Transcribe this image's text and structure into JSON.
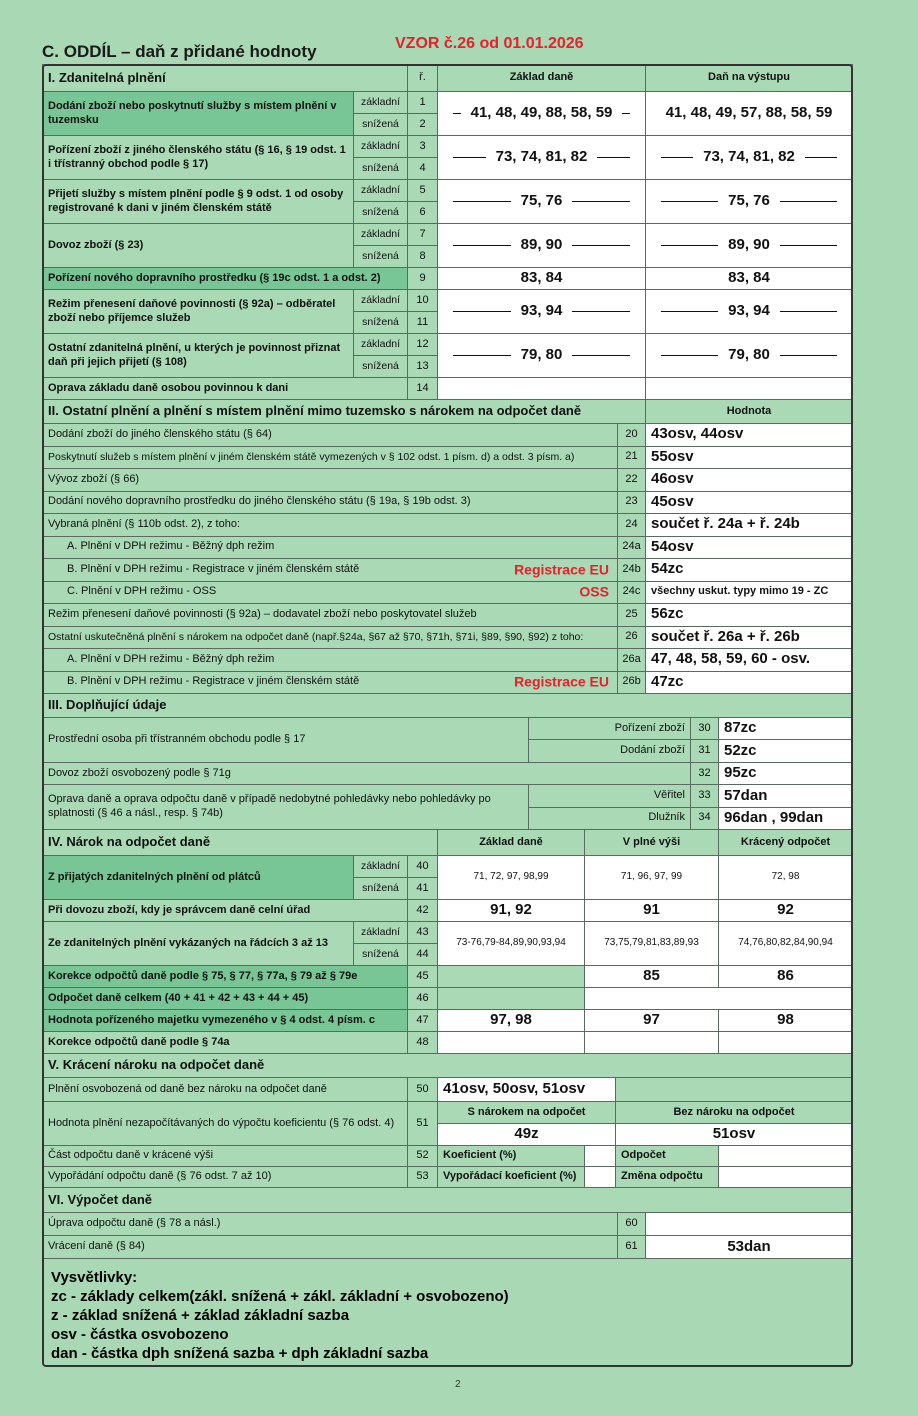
{
  "header": {
    "title": "C. ODDÍL – daň z přidané hodnoty",
    "stamp": "VZOR č.26 od 01.01.2026"
  },
  "section_1": {
    "heading": "I. Zdanitelná plnění",
    "col_r": "ř.",
    "col_base": "Základ daně",
    "col_tax": "Daň na výstupu",
    "rows": [
      {
        "label": "Dodání zboží nebo poskytnutí služby s místem plnění v tuzemsku",
        "subs": [
          "základní",
          "snížená"
        ],
        "nums": [
          "1",
          "2"
        ],
        "base": "41, 48, 49, 88, 58, 59",
        "tax": "41, 48, 49, 57, 88, 58, 59"
      },
      {
        "label": "Pořízení zboží z jiného členského státu (§ 16, § 19 odst. 1 i třístranný obchod podle § 17)",
        "subs": [
          "základní",
          "snížená"
        ],
        "nums": [
          "3",
          "4"
        ],
        "base": "73, 74, 81, 82",
        "tax": "73, 74, 81, 82"
      },
      {
        "label": "Přijetí služby s místem plnění podle § 9 odst. 1 od osoby registrované k dani v jiném členském státě",
        "subs": [
          "základní",
          "snížená"
        ],
        "nums": [
          "5",
          "6"
        ],
        "base": "75, 76",
        "tax": "75, 76"
      },
      {
        "label": "Dovoz zboží (§ 23)",
        "subs": [
          "základní",
          "snížená"
        ],
        "nums": [
          "7",
          "8"
        ],
        "base": "89, 90",
        "tax": "89, 90"
      },
      {
        "label": "Pořízení nového dopravního prostředku (§ 19c odst. 1 a odst. 2)",
        "nums": [
          "9"
        ],
        "base": "83, 84",
        "tax": "83, 84"
      },
      {
        "label": "Režim přenesení daňové povinnosti (§ 92a) – odběratel zboží nebo příjemce služeb",
        "subs": [
          "základní",
          "snížená"
        ],
        "nums": [
          "10",
          "11"
        ],
        "base": "93, 94",
        "tax": "93, 94"
      },
      {
        "label": "Ostatní zdanitelná plnění, u kterých je povinnost přiznat daň při jejich přijetí (§ 108)",
        "subs": [
          "základní",
          "snížená"
        ],
        "nums": [
          "12",
          "13"
        ],
        "base": "79, 80",
        "tax": "79, 80"
      },
      {
        "label": "Oprava základu daně osobou povinnou k dani",
        "nums": [
          "14"
        ]
      }
    ]
  },
  "section_2": {
    "heading": "II. Ostatní plnění a plnění s místem plnění mimo tuzemsko s nárokem na odpočet daně",
    "col_value": "Hodnota",
    "rows": [
      {
        "label": "Dodání zboží do jiného členského státu (§ 64)",
        "num": "20",
        "value": "43osv, 44osv"
      },
      {
        "label": "Poskytnutí služeb s místem plnění v jiném členském státě vymezených v § 102 odst. 1 písm. d) a odst. 3 písm. a)",
        "num": "21",
        "value": "55osv"
      },
      {
        "label": "Vývoz zboží (§ 66)",
        "num": "22",
        "value": "46osv"
      },
      {
        "label": "Dodání nového dopravního prostředku do jiného členského státu (§ 19a, § 19b odst. 3)",
        "num": "23",
        "value": "45osv"
      },
      {
        "label": "Vybraná plnění (§ 110b odst. 2), z toho:",
        "num": "24",
        "value": "součet ř. 24a + ř. 24b"
      },
      {
        "label": "A. Plnění v DPH režimu - Běžný dph režim",
        "num": "24a",
        "value": "54osv"
      },
      {
        "label": "B. Plnění v DPH režimu - Registrace v jiném členském státě",
        "note": "Registrace EU",
        "num": "24b",
        "value": "54zc"
      },
      {
        "label": "C. Plnění v DPH režimu - OSS",
        "note": "OSS",
        "num": "24c",
        "value": "všechny uskut. typy mimo 19 - ZC"
      },
      {
        "label": "Režim přenesení daňové povinnosti (§ 92a) – dodavatel zboží nebo poskytovatel služeb",
        "num": "25",
        "value": "56zc"
      },
      {
        "label": "Ostatní uskutečněná plnění s nárokem na odpočet daně (např.§24a, §67 až §70, §71h, §71i, §89, §90, §92) z toho:",
        "num": "26",
        "value": "součet ř. 26a + ř. 26b"
      },
      {
        "label": "A. Plnění v DPH režimu - Běžný dph režim",
        "num": "26a",
        "value": "47, 48, 58, 59, 60 - osv."
      },
      {
        "label": "B. Plnění v DPH režimu - Registrace v jiném členském státě",
        "note": "Registrace EU",
        "num": "26b",
        "value": "47zc"
      }
    ]
  },
  "section_3": {
    "heading": "III. Doplňující údaje",
    "groups": [
      {
        "label": "Prostřední osoba při třístranném obchodu podle § 17",
        "items": [
          {
            "sub": "Pořízení zboží",
            "num": "30",
            "value": "87zc"
          },
          {
            "sub": "Dodání zboží",
            "num": "31",
            "value": "52zc"
          }
        ]
      },
      {
        "label": "Dovoz zboží osvobozený podle § 71g",
        "items": [
          {
            "num": "32",
            "value": "95zc"
          }
        ]
      },
      {
        "label": "Oprava daně a oprava odpočtu daně v případě nedobytné pohledávky nebo pohledávky po splatnosti (§ 46 a násl., resp. § 74b)",
        "items": [
          {
            "sub": "Věřitel",
            "num": "33",
            "value": "57dan"
          },
          {
            "sub": "Dlužník",
            "num": "34",
            "value": "96dan , 99dan"
          }
        ]
      }
    ]
  },
  "section_4": {
    "heading": "IV. Nárok na odpočet daně",
    "columns": [
      "Základ daně",
      "V plné výši",
      "Krácený odpočet"
    ],
    "rows": [
      {
        "label": "Z přijatých zdanitelných plnění od plátců",
        "subs": [
          "základní",
          "snížená"
        ],
        "nums": [
          "40",
          "41"
        ],
        "base": "71, 72, 97, 98,99",
        "full": "71, 96, 97, 99",
        "reduced": "72, 98"
      },
      {
        "label": "Při dovozu zboží, kdy je správcem daně celní úřad",
        "nums": [
          "42"
        ],
        "base": "91, 92",
        "full": "91",
        "reduced": "92"
      },
      {
        "label": "Ze zdanitelných plnění vykázaných na řádcích 3 až 13",
        "subs": [
          "základní",
          "snížená"
        ],
        "nums": [
          "43",
          "44"
        ],
        "base": "73-76,79-84,89,90,93,94",
        "full": "73,75,79,81,83,89,93",
        "reduced": "74,76,80,82,84,90,94"
      },
      {
        "label": "Korekce odpočtů daně podle § 75, § 77, § 77a, § 79 až § 79e",
        "nums": [
          "45"
        ],
        "full": "85",
        "reduced": "86"
      },
      {
        "label": "Odpočet daně celkem (40 + 41 + 42 + 43 + 44 + 45)",
        "nums": [
          "46"
        ]
      },
      {
        "label": "Hodnota pořízeného majetku vymezeného v § 4 odst. 4 písm. c",
        "nums": [
          "47"
        ],
        "base": "97, 98",
        "full": "97",
        "reduced": "98"
      },
      {
        "label": "Korekce odpočtů daně podle § 74a",
        "nums": [
          "48"
        ]
      }
    ]
  },
  "section_5": {
    "heading": "V. Krácení nároku na odpočet daně",
    "row_50": {
      "label": "Plnění osvobozená od daně bez nároku na odpočet daně",
      "num": "50",
      "value": "41osv, 50osv, 51osv"
    },
    "row_51": {
      "label": "Hodnota plnění nezapočítávaných do výpočtu koeficientu (§ 76 odst. 4)",
      "num": "51",
      "columns": [
        "S nárokem na odpočet",
        "Bez nároku na odpočet"
      ],
      "values": [
        "49z",
        "51osv"
      ]
    },
    "row_52": {
      "label": "Část odpočtu daně v krácené výši",
      "num": "52",
      "sub_1": "Koeficient (%)",
      "sub_2": "Odpočet"
    },
    "row_53": {
      "label": "Vypořádání odpočtu daně (§ 76 odst. 7 až 10)",
      "num": "53",
      "sub_1": "Vypořádací koeficient (%)",
      "sub_2": "Změna odpočtu"
    }
  },
  "section_6": {
    "heading": "VI. Výpočet daně",
    "rows": [
      {
        "label": "Úprava odpočtu daně (§ 78 a násl.)",
        "num": "60"
      },
      {
        "label": "Vrácení daně (§ 84)",
        "num": "61",
        "value": "53dan"
      }
    ]
  },
  "legend": {
    "title": "Vysvětlivky:",
    "lines": [
      "zc - základy celkem(zákl. snížená + zákl. základní + osvobozeno)",
      "z - základ snížená + základ základní sazba",
      "osv - částka osvobozeno",
      "dan - částka dph snížená sazba + dph základní sazba"
    ]
  },
  "page_number": "2"
}
